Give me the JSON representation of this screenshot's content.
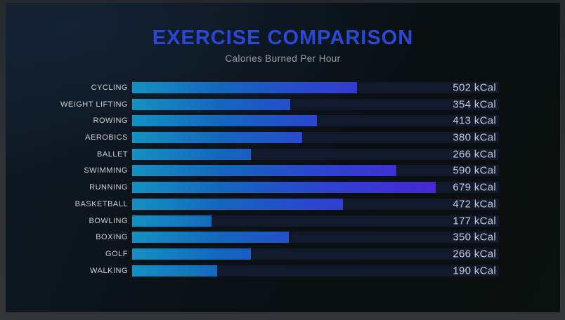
{
  "header": {
    "title": "EXERCISE COMPARISON",
    "subtitle": "Calories Burned Per Hour"
  },
  "chart_data": {
    "type": "bar",
    "orientation": "horizontal",
    "title": "EXERCISE COMPARISON",
    "subtitle": "Calories Burned Per Hour",
    "categories": [
      "CYCLING",
      "WEIGHT LIFTING",
      "ROWING",
      "AEROBICS",
      "BALLET",
      "SWIMMING",
      "RUNNING",
      "BASKETBALL",
      "BOWLING",
      "BOXING",
      "GOLF",
      "WALKING"
    ],
    "values": [
      502,
      354,
      413,
      380,
      266,
      590,
      679,
      472,
      177,
      350,
      266,
      190
    ],
    "value_suffix": " kCal",
    "xlabel": "",
    "ylabel": "",
    "xlim": [
      0,
      820
    ],
    "grid": false,
    "legend": false,
    "value_labels_position": "right-aligned-on-track",
    "colors": {
      "title": "#2b47d6",
      "subtitle": "#9aa0a8",
      "label": "#cdd1d6",
      "value": "#c8cdd4",
      "track": "#111a2d",
      "bar_gradient": [
        [
          "#1591c1",
          "0%"
        ],
        [
          "#1365be",
          "25%"
        ],
        [
          "#2b46cf",
          "50%"
        ],
        [
          "#3f2cd3",
          "75%"
        ],
        [
          "#5c1bd9",
          "100%"
        ]
      ],
      "background": [
        "#101a26",
        "#0c141c",
        "#0a0f11",
        "#0b110e"
      ]
    }
  }
}
